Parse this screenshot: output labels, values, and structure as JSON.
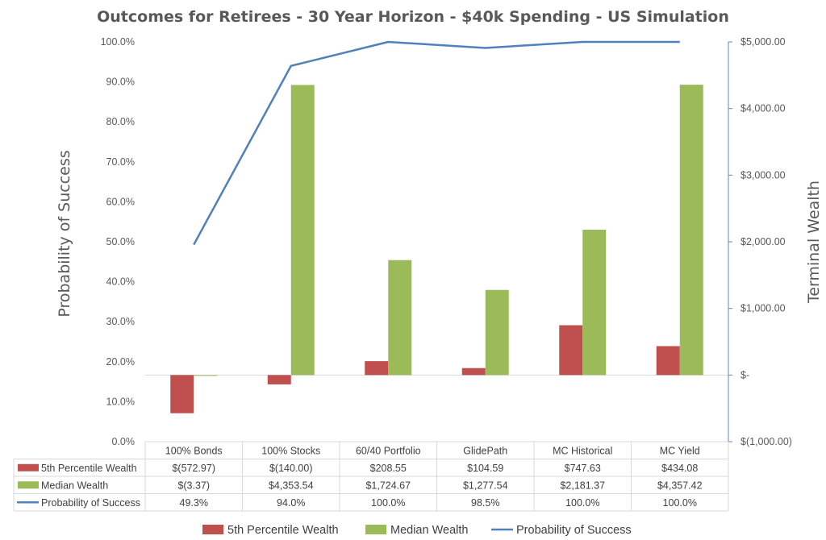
{
  "chart_data": {
    "type": "bar",
    "title": "Outcomes for Retirees - 30 Year Horizon - $40k Spending - US Simulation",
    "y_left_label": "Probability of Success",
    "y_right_label": "Terminal Wealth",
    "categories": [
      "100% Bonds",
      "100% Stocks",
      "60/40 Portfolio",
      "GlidePath",
      "MC Historical",
      "MC Yield"
    ],
    "y_left_ticks": [
      "0.0%",
      "10.0%",
      "20.0%",
      "30.0%",
      "40.0%",
      "50.0%",
      "60.0%",
      "70.0%",
      "80.0%",
      "90.0%",
      "100.0%"
    ],
    "y_right_ticks": [
      "$(1,000.00)",
      "$-",
      "$1,000.00",
      "$2,000.00",
      "$3,000.00",
      "$4,000.00",
      "$5,000.00"
    ],
    "y_left_range": [
      0,
      100
    ],
    "y_right_range": [
      -1000,
      5000
    ],
    "legend_position": "bottom",
    "series": [
      {
        "name": "5th Percentile Wealth",
        "kind": "bar",
        "axis": "right",
        "color": "#C0504D",
        "values": [
          -572.97,
          -140.0,
          208.55,
          104.59,
          747.63,
          434.08
        ],
        "labels": [
          "$(572.97)",
          "$(140.00)",
          "$208.55",
          "$104.59",
          "$747.63",
          "$434.08"
        ]
      },
      {
        "name": "Median Wealth",
        "kind": "bar",
        "axis": "right",
        "color": "#9BBB59",
        "values": [
          -3.37,
          4353.54,
          1724.67,
          1277.54,
          2181.37,
          4357.42
        ],
        "labels": [
          "$(3.37)",
          "$4,353.54",
          "$1,724.67",
          "$1,277.54",
          "$2,181.37",
          "$4,357.42"
        ]
      },
      {
        "name": "Probability of Success",
        "kind": "line",
        "axis": "left",
        "color": "#4F81BD",
        "values": [
          49.3,
          94.0,
          100.0,
          98.5,
          100.0,
          100.0
        ],
        "labels": [
          "49.3%",
          "94.0%",
          "100.0%",
          "98.5%",
          "100.0%",
          "100.0%"
        ]
      }
    ]
  }
}
